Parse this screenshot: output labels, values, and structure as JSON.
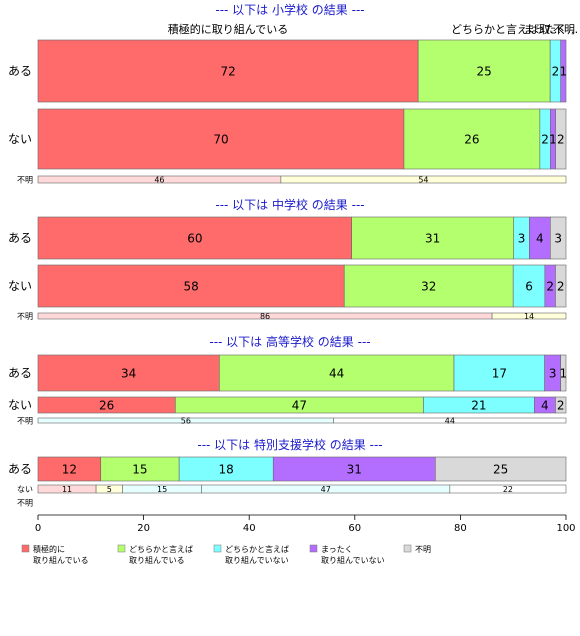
{
  "chart_data": {
    "type": "bar",
    "orientation": "horizontal",
    "stacked": "percent",
    "xlim": [
      0,
      100
    ],
    "xticks": [
      0,
      20,
      40,
      60,
      80,
      100
    ],
    "categories": [
      "積極的に\n取り組んでいる",
      "どちらかと言えば\n取り組んでいる",
      "どちらかと言えば\n取り組んでいない",
      "まったく\n取り組んでいない",
      "不明"
    ],
    "colors": [
      "#FF6B6B",
      "#B4FF6E",
      "#7DFFFF",
      "#B46EFF",
      "#D9D9D9"
    ],
    "legend_position": "bottom",
    "top_labels": [
      "積極的に取り組んでいる",
      "どちらかと言えば取…",
      "まったく…",
      "不明"
    ],
    "groups": [
      {
        "title": "--- 以下は 小学校 の結果 ---",
        "rows": [
          {
            "label": "ある",
            "values": [
              72,
              25,
              2,
              1,
              0
            ]
          },
          {
            "label": "ない",
            "values": [
              70,
              26,
              2,
              1,
              2
            ]
          },
          {
            "label": "不明",
            "values": [
              46,
              54,
              0,
              0,
              0
            ]
          }
        ]
      },
      {
        "title": "--- 以下は 中学校 の結果 ---",
        "rows": [
          {
            "label": "ある",
            "values": [
              60,
              31,
              3,
              4,
              3
            ]
          },
          {
            "label": "ない",
            "values": [
              58,
              32,
              6,
              2,
              2
            ]
          },
          {
            "label": "不明",
            "values": [
              86,
              14,
              0,
              0,
              0
            ]
          }
        ]
      },
      {
        "title": "--- 以下は 高等学校 の結果 ---",
        "rows": [
          {
            "label": "ある",
            "values": [
              34,
              44,
              17,
              3,
              1
            ]
          },
          {
            "label": "ない",
            "values": [
              26,
              47,
              21,
              4,
              2
            ]
          },
          {
            "label": "不明",
            "values": [
              0,
              0,
              56,
              0,
              44
            ]
          }
        ]
      },
      {
        "title": "--- 以下は 特別支援学校 の結果 ---",
        "rows": [
          {
            "label": "ある",
            "values": [
              12,
              15,
              18,
              31,
              25
            ]
          },
          {
            "label": "ない",
            "values": [
              11,
              5,
              15,
              47,
              22
            ]
          },
          {
            "label": "不明",
            "values": [
              0,
              0,
              0,
              0,
              0
            ]
          }
        ]
      }
    ]
  }
}
